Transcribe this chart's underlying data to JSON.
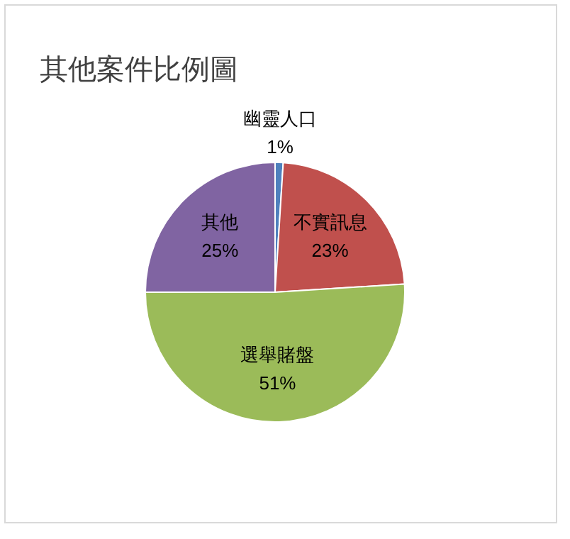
{
  "chart_data": {
    "type": "pie",
    "title": "其他案件比例圖",
    "categories": [
      "幽靈人口",
      "不實訊息",
      "選舉賭盤",
      "其他"
    ],
    "values": [
      1,
      23,
      51,
      25
    ],
    "colors": [
      "#4f81bd",
      "#c0504d",
      "#9bbb59",
      "#8064a2"
    ],
    "value_labels": [
      "1%",
      "23%",
      "51%",
      "25%"
    ],
    "legend": false
  }
}
